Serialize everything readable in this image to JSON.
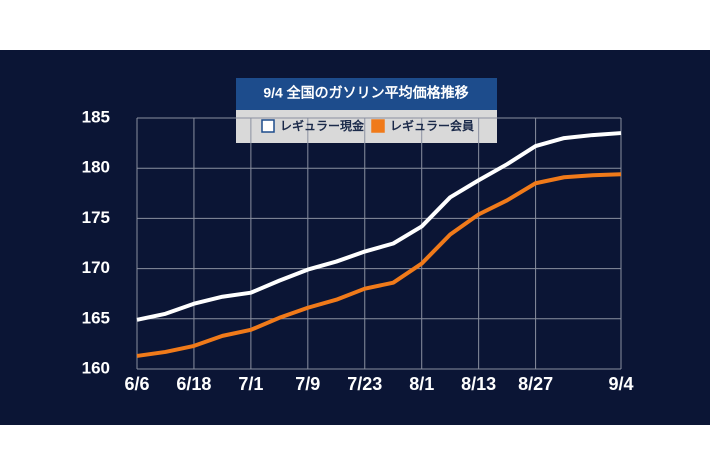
{
  "chart_data": {
    "type": "line",
    "title": "9/4 全国のガソリン平均価格推移",
    "categories": [
      "6/6",
      null,
      "6/18",
      null,
      "7/1",
      null,
      "7/9",
      null,
      "7/23",
      null,
      "8/1",
      null,
      "8/13",
      null,
      "8/27",
      null,
      null,
      "9/4"
    ],
    "series": [
      {
        "name": "レギュラー現金",
        "color": "#ffffff",
        "values": [
          164.9,
          165.5,
          166.5,
          167.2,
          167.6,
          168.8,
          169.9,
          170.7,
          171.7,
          172.5,
          174.2,
          177.1,
          178.8,
          180.4,
          182.2,
          183.0,
          183.3,
          183.5
        ]
      },
      {
        "name": "レギュラー会員",
        "color": "#f07a1a",
        "values": [
          161.3,
          161.7,
          162.3,
          163.3,
          163.9,
          165.1,
          166.1,
          166.9,
          168.0,
          168.6,
          170.5,
          173.4,
          175.4,
          176.8,
          178.5,
          179.1,
          179.3,
          179.4
        ]
      }
    ],
    "ylim": [
      160,
      185
    ],
    "yticks": [
      160,
      165,
      170,
      175,
      180,
      185
    ],
    "grid": true
  }
}
